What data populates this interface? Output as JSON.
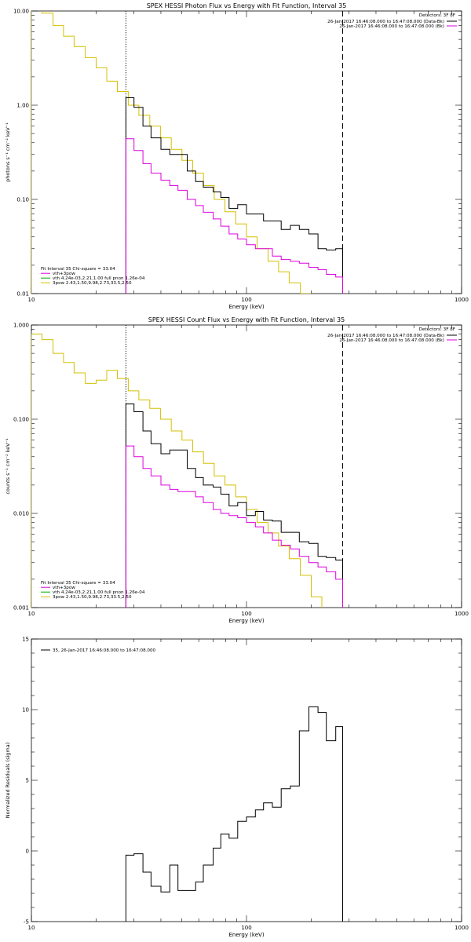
{
  "chart_data": [
    {
      "type": "line",
      "title": "SPEX HESSI Photon Flux vs Energy with Fit Function, Interval 35",
      "xlabel": "Energy (keV)",
      "ylabel": "photons s⁻¹ cm⁻² keV⁻¹",
      "xscale": "log",
      "yscale": "log",
      "xlim": [
        10,
        1000
      ],
      "ylim": [
        0.01,
        10
      ],
      "xticks": [
        "10",
        "100",
        "1000"
      ],
      "yticks": [
        "0.01",
        "0.10",
        "1.00",
        "10.00"
      ],
      "legend_title": "Detectors: 3F 8F",
      "legend": [
        {
          "label": "26-Jan-2017 16:46:08.000 to 16:47:08.000 (Data-Bk)",
          "color": "#000000"
        },
        {
          "label": "26-Jan-2017 16:46:08.000 to 16:47:08.000 (Bk)",
          "color": "#dd00dd"
        }
      ],
      "fit_text": {
        "header": "Fit Interval 35   Chi-square = 33.04",
        "lines": [
          {
            "label": "vth+3pow",
            "color": "#dd00dd"
          },
          {
            "label": "vth 4.24e-03,2.21,1.00  full pnon 1.26e-04",
            "color": "#00aa00"
          },
          {
            "label": "3pow 2.43,1.50,9.98,2.73,33.5,2.50",
            "color": "#d4c000"
          }
        ]
      },
      "fit_range": [
        27.5,
        280
      ],
      "series": [
        {
          "color": "#d4c000",
          "edges": [
            10,
            11.2,
            12.6,
            14.1,
            15.8,
            17.8,
            20,
            22.4,
            25.1,
            28.2,
            31.6,
            35.5,
            39.8,
            44.7,
            50.1,
            56.2,
            63.1,
            70.8,
            79.4,
            89.1,
            100,
            112,
            126,
            141,
            158,
            178,
            200
          ],
          "values": [
            12,
            9.5,
            7,
            5.4,
            4.2,
            3.2,
            2.5,
            1.8,
            1.4,
            1.0,
            0.78,
            0.6,
            0.45,
            0.34,
            0.26,
            0.19,
            0.14,
            0.1,
            0.074,
            0.055,
            0.04,
            0.03,
            0.022,
            0.017,
            0.013,
            0.01
          ]
        },
        {
          "color": "#000000",
          "edges": [
            27.5,
            30,
            33,
            36,
            40,
            44,
            48,
            53,
            58,
            63,
            70,
            76,
            83,
            91,
            100,
            110,
            120,
            132,
            145,
            160,
            176,
            195,
            215,
            235,
            260,
            280
          ],
          "values": [
            1.2,
            0.95,
            0.6,
            0.45,
            0.34,
            0.3,
            0.3,
            0.2,
            0.155,
            0.135,
            0.12,
            0.105,
            0.08,
            0.088,
            0.07,
            0.07,
            0.059,
            0.059,
            0.048,
            0.053,
            0.048,
            0.043,
            0.03,
            0.029,
            0.03
          ]
        },
        {
          "color": "#dd00dd",
          "edges": [
            27.5,
            30,
            33,
            36,
            40,
            44,
            48,
            53,
            58,
            63,
            70,
            76,
            83,
            91,
            100,
            110,
            120,
            132,
            145,
            160,
            176,
            195,
            215,
            235,
            260,
            280
          ],
          "values": [
            0.44,
            0.33,
            0.24,
            0.19,
            0.16,
            0.14,
            0.125,
            0.1,
            0.086,
            0.073,
            0.062,
            0.052,
            0.043,
            0.038,
            0.033,
            0.03,
            0.03,
            0.025,
            0.023,
            0.022,
            0.021,
            0.019,
            0.018,
            0.016,
            0.015
          ]
        }
      ]
    },
    {
      "type": "line",
      "title": "SPEX HESSI Count Flux vs Energy with Fit Function, Interval 35",
      "xlabel": "Energy (keV)",
      "ylabel": "counts s⁻¹ cm⁻² keV⁻¹",
      "xscale": "log",
      "yscale": "log",
      "xlim": [
        10,
        1000
      ],
      "ylim": [
        0.001,
        1
      ],
      "xticks": [
        "10",
        "100",
        "1000"
      ],
      "yticks": [
        "0.001",
        "0.010",
        "0.100",
        "1.000"
      ],
      "legend_title": "Detectors: 3F 8F",
      "legend": [
        {
          "label": "26-Jan-2017 16:46:08.000 to 16:47:08.000 (Data-Bk)",
          "color": "#000000"
        },
        {
          "label": "26-Jan-2017 16:46:08.000 to 16:47:08.000 (Bk)",
          "color": "#dd00dd"
        }
      ],
      "fit_text": {
        "header": "Fit Interval 35   Chi-square = 33.04",
        "lines": [
          {
            "label": "vth+3pow",
            "color": "#dd00dd"
          },
          {
            "label": "vth 4.24e-03,2.21,1.00  full pnon 1.26e-04",
            "color": "#00aa00"
          },
          {
            "label": "3pow 2.43,1.50,9.98,2.73,33.5,2.50",
            "color": "#d4c000"
          }
        ]
      },
      "fit_range": [
        27.5,
        280
      ],
      "series": [
        {
          "color": "#d4c000",
          "edges": [
            10,
            11.2,
            12.6,
            14.1,
            15.8,
            17.8,
            20,
            22.4,
            25.1,
            28.2,
            31.6,
            35.5,
            39.8,
            44.7,
            50.1,
            56.2,
            63.1,
            70.8,
            79.4,
            89.1,
            100,
            112,
            126,
            141,
            158,
            178,
            200,
            224
          ],
          "values": [
            0.8,
            0.7,
            0.5,
            0.4,
            0.31,
            0.24,
            0.26,
            0.33,
            0.27,
            0.2,
            0.16,
            0.13,
            0.1,
            0.075,
            0.06,
            0.045,
            0.034,
            0.025,
            0.02,
            0.015,
            0.011,
            0.008,
            0.0062,
            0.0045,
            0.0033,
            0.0022,
            0.0013
          ]
        },
        {
          "color": "#000000",
          "edges": [
            27.5,
            30,
            33,
            36,
            40,
            44,
            48,
            53,
            58,
            63,
            70,
            76,
            83,
            91,
            100,
            110,
            120,
            132,
            145,
            160,
            176,
            195,
            215,
            235,
            260,
            280
          ],
          "values": [
            0.145,
            0.12,
            0.075,
            0.055,
            0.043,
            0.047,
            0.047,
            0.03,
            0.024,
            0.02,
            0.019,
            0.016,
            0.012,
            0.013,
            0.0095,
            0.0105,
            0.0085,
            0.0083,
            0.0063,
            0.0063,
            0.005,
            0.0048,
            0.0035,
            0.0034,
            0.0032
          ]
        },
        {
          "color": "#dd00dd",
          "edges": [
            27.5,
            30,
            33,
            36,
            40,
            44,
            48,
            53,
            58,
            63,
            70,
            76,
            83,
            91,
            100,
            110,
            120,
            132,
            145,
            160,
            176,
            195,
            215,
            235,
            260,
            280
          ],
          "values": [
            0.052,
            0.04,
            0.03,
            0.025,
            0.02,
            0.018,
            0.017,
            0.017,
            0.015,
            0.013,
            0.011,
            0.01,
            0.0095,
            0.009,
            0.008,
            0.0072,
            0.0062,
            0.0052,
            0.0046,
            0.0042,
            0.0035,
            0.003,
            0.0027,
            0.0024,
            0.002
          ]
        }
      ]
    },
    {
      "type": "line",
      "title": "",
      "xlabel": "Energy (keV)",
      "ylabel": "Normalized Residuals (sigma)",
      "xscale": "log",
      "yscale": "linear",
      "xlim": [
        10,
        1000
      ],
      "ylim": [
        -5,
        15
      ],
      "xticks": [
        "10",
        "100",
        "1000"
      ],
      "yticks": [
        "-5",
        "0",
        "5",
        "10",
        "15"
      ],
      "legend": [
        {
          "label": "35, 26-Jan-2017 16:46:08.000 to 16:47:08.000",
          "color": "#000000"
        }
      ],
      "series": [
        {
          "color": "#000000",
          "edges": [
            27.5,
            30,
            33,
            36,
            40,
            44,
            48,
            53,
            58,
            63,
            70,
            76,
            83,
            91,
            100,
            110,
            120,
            132,
            145,
            160,
            176,
            195,
            215,
            235,
            260,
            280
          ],
          "values": [
            -0.3,
            -0.2,
            -1.5,
            -2.5,
            -2.9,
            -1.0,
            -2.8,
            -2.8,
            -2.2,
            -1.0,
            0.2,
            1.2,
            0.9,
            2.1,
            2.4,
            2.9,
            3.4,
            3.1,
            4.4,
            4.6,
            8.5,
            10.2,
            9.8,
            7.8,
            8.8
          ]
        }
      ]
    }
  ]
}
